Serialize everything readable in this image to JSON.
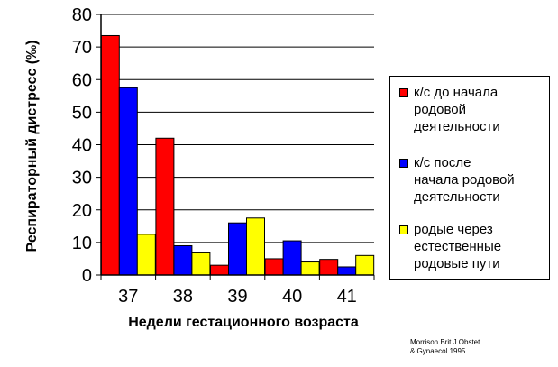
{
  "chart_data": {
    "type": "bar",
    "categories": [
      "37",
      "38",
      "39",
      "40",
      "41"
    ],
    "series": [
      {
        "name": "к/с до начала\nродовой\nдеятельности",
        "color": "#ff0000",
        "values": [
          73.5,
          42,
          3,
          5,
          4.8
        ]
      },
      {
        "name": "к/с после\nначала родовой\nдеятельности",
        "color": "#0000ff",
        "values": [
          57.5,
          9,
          16,
          10.5,
          2.5
        ]
      },
      {
        "name": "родые через\nестественные\nродовые пути",
        "color": "#ffff00",
        "values": [
          12.5,
          6.8,
          17.5,
          4,
          6
        ]
      }
    ],
    "ylabel": "Респираторный дистресс (‰)",
    "xlabel": "Недели гестационного возраста",
    "ylim": [
      0,
      80
    ],
    "yticks": [
      "0",
      "10",
      "20",
      "30",
      "40",
      "50",
      "60",
      "70",
      "80"
    ],
    "grid": true,
    "legend_position": "right"
  },
  "source_note": "Morrison Brit J Obstet\n& Gynaecol 1995"
}
